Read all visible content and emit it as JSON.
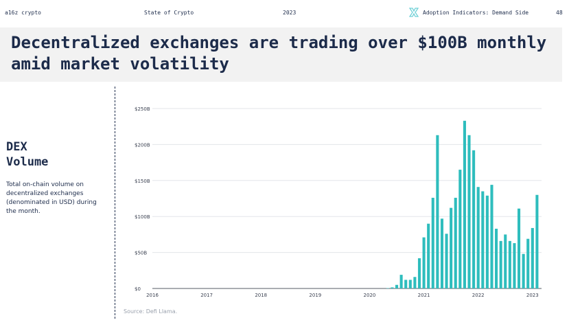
{
  "header": {
    "brand": "a16z crypto",
    "report": "State of Crypto",
    "year": "2023",
    "section": "Adoption Indicators: Demand Side",
    "page": "48",
    "logo_icon": "hourglass-logo-icon"
  },
  "slide": {
    "title": "Decentralized exchanges are trading over $100B monthly amid market volatility",
    "metric_title_line1": "DEX",
    "metric_title_line2": "Volume",
    "metric_description": "Total on-chain volume on decentralized exchanges (denominated in USD) during the month.",
    "source": "Source: Defi Llama."
  },
  "colors": {
    "bar": "#2ebdbd",
    "text": "#1c2b4a",
    "grid": "#e3e6ea",
    "title_band": "#f2f2f2"
  },
  "chart_data": {
    "type": "bar",
    "title": "",
    "xlabel": "",
    "ylabel": "",
    "ylim": [
      0,
      250
    ],
    "y_ticks": [
      {
        "value": 0,
        "label": "$0"
      },
      {
        "value": 50,
        "label": "$50B"
      },
      {
        "value": 100,
        "label": "$100B"
      },
      {
        "value": 150,
        "label": "$150B"
      },
      {
        "value": 200,
        "label": "$200B"
      },
      {
        "value": 250,
        "label": "$250B"
      }
    ],
    "x_ticks": [
      "2016",
      "2017",
      "2018",
      "2019",
      "2020",
      "2021",
      "2022",
      "2023"
    ],
    "x_range": [
      "2016-01",
      "2023-03"
    ],
    "grid": "horizontal",
    "legend": "none",
    "series": [
      {
        "points": [
          {
            "x": "2020-05",
            "y": 0.5
          },
          {
            "x": "2020-06",
            "y": 1.5
          },
          {
            "x": "2020-07",
            "y": 5
          },
          {
            "x": "2020-08",
            "y": 19
          },
          {
            "x": "2020-09",
            "y": 12
          },
          {
            "x": "2020-10",
            "y": 12
          },
          {
            "x": "2020-11",
            "y": 16
          },
          {
            "x": "2020-12",
            "y": 42
          },
          {
            "x": "2021-01",
            "y": 71
          },
          {
            "x": "2021-02",
            "y": 90
          },
          {
            "x": "2021-03",
            "y": 126
          },
          {
            "x": "2021-04",
            "y": 213
          },
          {
            "x": "2021-05",
            "y": 97
          },
          {
            "x": "2021-06",
            "y": 76
          },
          {
            "x": "2021-07",
            "y": 112
          },
          {
            "x": "2021-08",
            "y": 126
          },
          {
            "x": "2021-09",
            "y": 165
          },
          {
            "x": "2021-10",
            "y": 233
          },
          {
            "x": "2021-11",
            "y": 213
          },
          {
            "x": "2021-12",
            "y": 192
          },
          {
            "x": "2022-01",
            "y": 141
          },
          {
            "x": "2022-02",
            "y": 135
          },
          {
            "x": "2022-03",
            "y": 129
          },
          {
            "x": "2022-04",
            "y": 144
          },
          {
            "x": "2022-05",
            "y": 83
          },
          {
            "x": "2022-06",
            "y": 66
          },
          {
            "x": "2022-07",
            "y": 75
          },
          {
            "x": "2022-08",
            "y": 66
          },
          {
            "x": "2022-09",
            "y": 63
          },
          {
            "x": "2022-10",
            "y": 111
          },
          {
            "x": "2022-11",
            "y": 48
          },
          {
            "x": "2022-12",
            "y": 69
          },
          {
            "x": "2023-01",
            "y": 84
          },
          {
            "x": "2023-02",
            "y": 130
          }
        ]
      }
    ]
  }
}
